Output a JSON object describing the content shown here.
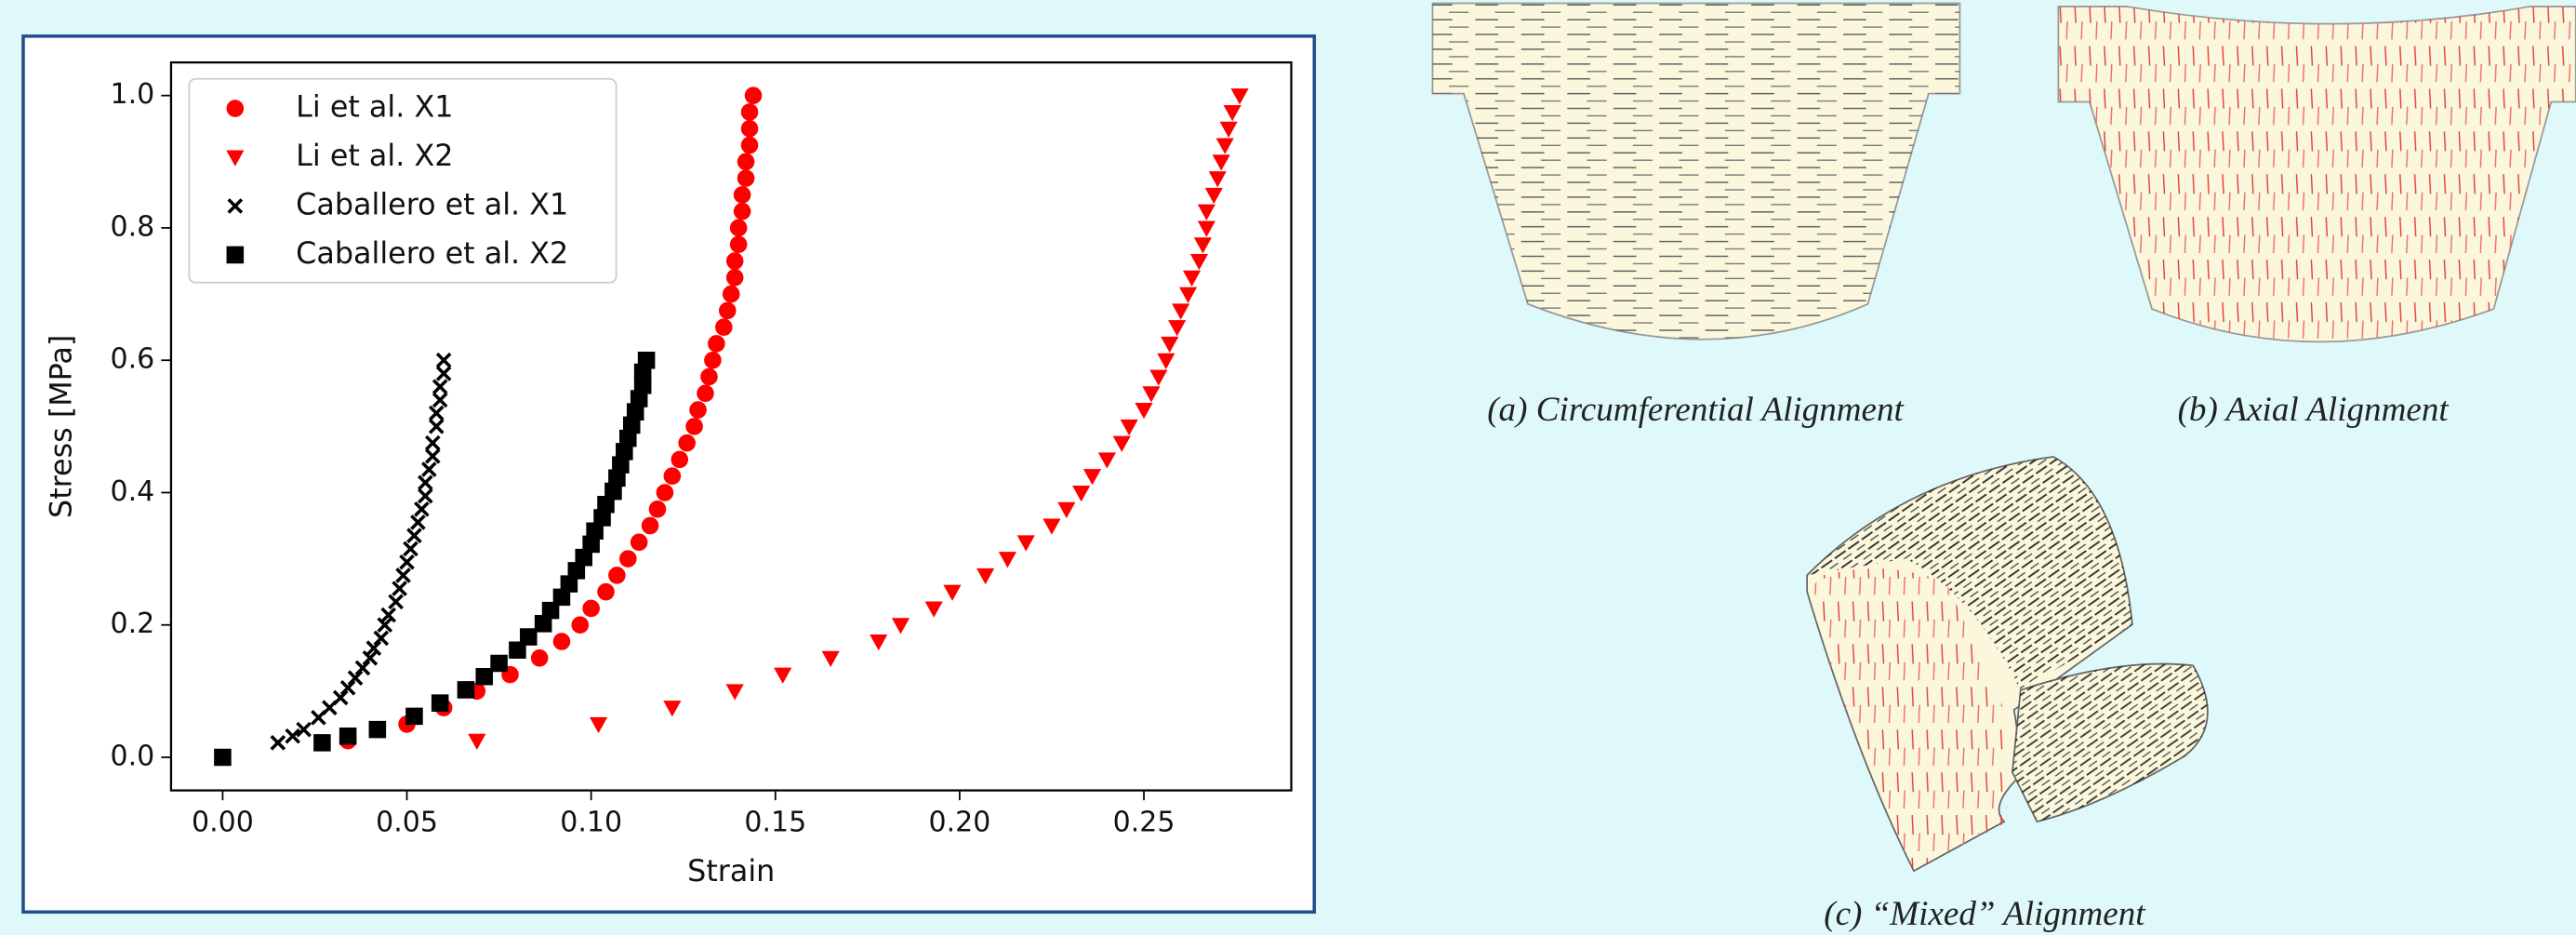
{
  "chart_data": {
    "type": "scatter",
    "xlabel": "Strain",
    "ylabel": "Stress [MPa]",
    "xlim": [
      -0.014,
      0.29
    ],
    "ylim": [
      -0.05,
      1.05
    ],
    "xticks": [
      {
        "value": 0,
        "label": "0.00"
      },
      0.05,
      {
        "value": 0.1,
        "label": "0.10"
      },
      0.15,
      {
        "value": 0.2,
        "label": "0.20"
      },
      0.25
    ],
    "yticks": [
      {
        "value": 0,
        "label": "0.0"
      },
      0.2,
      0.4,
      0.6,
      0.8,
      {
        "value": 1,
        "label": "1.0"
      }
    ],
    "grid": false,
    "legend": "upper left",
    "series": [
      {
        "name": "Li et al. X1",
        "color": "#ff0000",
        "marker": "circle",
        "x": [
          0.034,
          0.05,
          0.06,
          0.069,
          0.078,
          0.086,
          0.092,
          0.097,
          0.1,
          0.104,
          0.107,
          0.11,
          0.113,
          0.116,
          0.118,
          0.12,
          0.122,
          0.124,
          0.126,
          0.128,
          0.129,
          0.131,
          0.132,
          0.133,
          0.134,
          0.136,
          0.137,
          0.138,
          0.139,
          0.139,
          0.14,
          0.14,
          0.141,
          0.141,
          0.142,
          0.142,
          0.143,
          0.143,
          0.143,
          0.144
        ],
        "values": [
          0.025,
          0.05,
          0.075,
          0.1,
          0.125,
          0.15,
          0.175,
          0.2,
          0.225,
          0.25,
          0.275,
          0.3,
          0.325,
          0.35,
          0.375,
          0.4,
          0.425,
          0.45,
          0.475,
          0.5,
          0.525,
          0.55,
          0.575,
          0.6,
          0.625,
          0.65,
          0.675,
          0.7,
          0.725,
          0.75,
          0.775,
          0.8,
          0.825,
          0.85,
          0.875,
          0.9,
          0.925,
          0.95,
          0.975,
          1.0
        ]
      },
      {
        "name": "Li et al. X2",
        "color": "#ff0000",
        "marker": "triangle",
        "x": [
          0.069,
          0.102,
          0.122,
          0.139,
          0.152,
          0.165,
          0.178,
          0.184,
          0.193,
          0.198,
          0.207,
          0.213,
          0.218,
          0.225,
          0.229,
          0.233,
          0.236,
          0.24,
          0.244,
          0.246,
          0.25,
          0.252,
          0.254,
          0.256,
          0.257,
          0.259,
          0.26,
          0.262,
          0.263,
          0.265,
          0.266,
          0.267,
          0.267,
          0.269,
          0.27,
          0.271,
          0.272,
          0.273,
          0.274,
          0.276
        ],
        "values": [
          0.025,
          0.05,
          0.075,
          0.1,
          0.125,
          0.15,
          0.175,
          0.2,
          0.225,
          0.25,
          0.275,
          0.3,
          0.325,
          0.35,
          0.375,
          0.4,
          0.425,
          0.45,
          0.475,
          0.5,
          0.525,
          0.55,
          0.575,
          0.6,
          0.625,
          0.65,
          0.675,
          0.7,
          0.725,
          0.75,
          0.775,
          0.8,
          0.825,
          0.85,
          0.875,
          0.9,
          0.925,
          0.95,
          0.975,
          1.0
        ]
      },
      {
        "name": "Caballero et al. X1",
        "color": "#000000",
        "marker": "x",
        "x": [
          0.015,
          0.019,
          0.022,
          0.026,
          0.029,
          0.032,
          0.034,
          0.036,
          0.038,
          0.04,
          0.041,
          0.043,
          0.044,
          0.045,
          0.047,
          0.048,
          0.049,
          0.05,
          0.051,
          0.052,
          0.053,
          0.054,
          0.055,
          0.055,
          0.056,
          0.057,
          0.057,
          0.058,
          0.058,
          0.059,
          0.059,
          0.06,
          0.06
        ],
        "values": [
          0.022,
          0.032,
          0.042,
          0.06,
          0.075,
          0.09,
          0.105,
          0.12,
          0.135,
          0.15,
          0.165,
          0.18,
          0.2,
          0.215,
          0.235,
          0.255,
          0.275,
          0.295,
          0.315,
          0.335,
          0.355,
          0.375,
          0.395,
          0.415,
          0.435,
          0.455,
          0.475,
          0.5,
          0.52,
          0.54,
          0.56,
          0.58,
          0.6
        ]
      },
      {
        "name": "Caballero et al. X2",
        "color": "#000000",
        "marker": "square",
        "x": [
          0.0,
          0.027,
          0.034,
          0.042,
          0.052,
          0.059,
          0.066,
          0.071,
          0.075,
          0.08,
          0.083,
          0.087,
          0.089,
          0.092,
          0.094,
          0.096,
          0.098,
          0.1,
          0.101,
          0.103,
          0.104,
          0.106,
          0.107,
          0.108,
          0.109,
          0.11,
          0.111,
          0.112,
          0.113,
          0.114,
          0.114,
          0.115
        ],
        "values": [
          0.0,
          0.022,
          0.032,
          0.042,
          0.062,
          0.082,
          0.102,
          0.122,
          0.142,
          0.162,
          0.182,
          0.202,
          0.222,
          0.242,
          0.262,
          0.282,
          0.302,
          0.322,
          0.342,
          0.362,
          0.382,
          0.402,
          0.422,
          0.442,
          0.462,
          0.482,
          0.502,
          0.522,
          0.542,
          0.562,
          0.582,
          0.6
        ]
      }
    ]
  },
  "panels": [
    {
      "caption": "(a) Circumferential Alignment"
    },
    {
      "caption": "(b) Axial Alignment"
    },
    {
      "caption": "(c) “Mixed” Alignment"
    }
  ]
}
